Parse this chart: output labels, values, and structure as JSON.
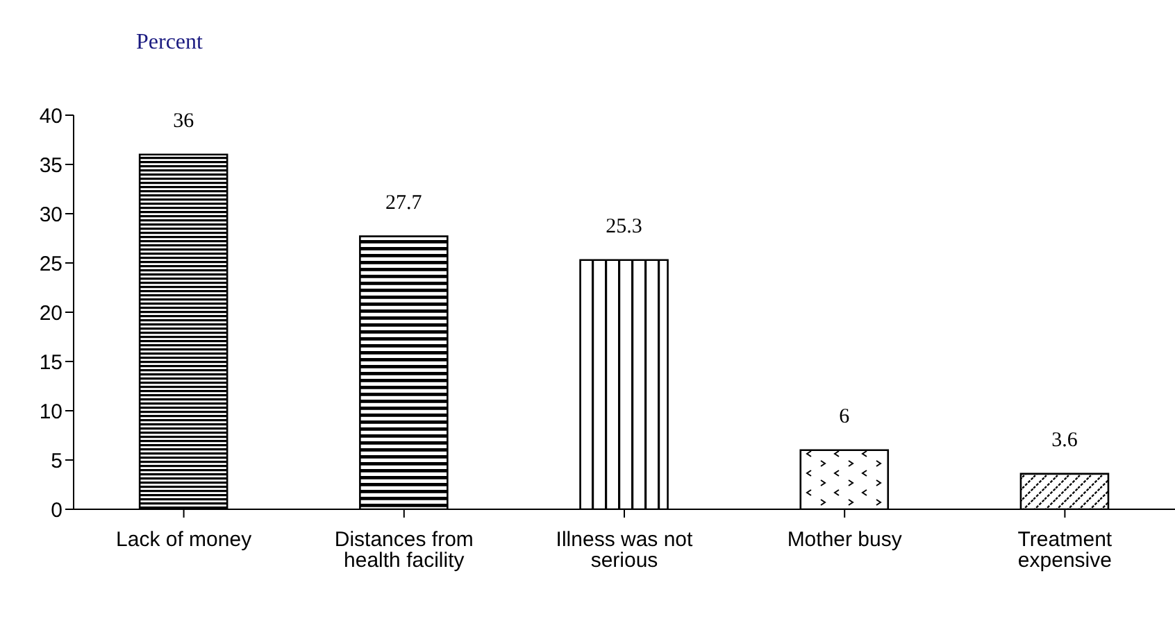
{
  "chart_data": {
    "type": "bar",
    "ylabel": "Percent",
    "categories": [
      "Lack of money",
      "Distances from health facility",
      "Illness was not serious",
      "Mother busy",
      "Treatment expensive"
    ],
    "values": [
      36,
      27.7,
      25.3,
      6,
      3.6
    ],
    "colors": [
      "#000000",
      "#000000",
      "#000000",
      "#000000",
      "#000000"
    ],
    "ylim": [
      0,
      40
    ],
    "yticks": [
      0,
      5,
      10,
      15,
      20,
      25,
      30,
      35,
      40
    ],
    "grid": false,
    "legend": false,
    "data_labels": true
  }
}
